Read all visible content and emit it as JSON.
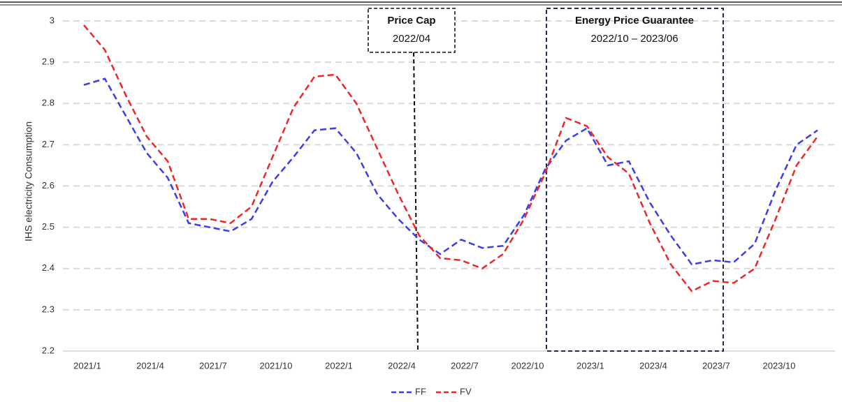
{
  "chart_data": {
    "type": "line",
    "ylabel": "IHS electricity Consumption",
    "categories": [
      "2021/1",
      null,
      null,
      "2021/4",
      null,
      null,
      "2021/7",
      null,
      null,
      "2021/10",
      null,
      null,
      "2022/1",
      null,
      null,
      "2022/4",
      null,
      null,
      "2022/7",
      null,
      null,
      "2022/10",
      null,
      null,
      "2023/1",
      null,
      null,
      "2023/4",
      null,
      null,
      "2023/7",
      null,
      null,
      "2023/10",
      null,
      null
    ],
    "series": [
      {
        "name": "FF",
        "color": "#3b3bf2",
        "values": [
          2.845,
          2.86,
          2.77,
          2.68,
          2.62,
          2.51,
          2.5,
          2.49,
          2.52,
          2.61,
          2.67,
          2.735,
          2.74,
          2.68,
          2.58,
          2.52,
          2.47,
          2.435,
          2.47,
          2.45,
          2.455,
          2.53,
          2.64,
          2.71,
          2.74,
          2.65,
          2.66,
          2.56,
          2.48,
          2.41,
          2.42,
          2.415,
          2.46,
          2.59,
          2.7,
          2.735
        ]
      },
      {
        "name": "FV",
        "color": "#f02626",
        "values": [
          2.99,
          2.93,
          2.82,
          2.72,
          2.66,
          2.52,
          2.52,
          2.51,
          2.55,
          2.67,
          2.79,
          2.865,
          2.87,
          2.8,
          2.69,
          2.58,
          2.48,
          2.425,
          2.42,
          2.4,
          2.435,
          2.52,
          2.63,
          2.765,
          2.745,
          2.67,
          2.63,
          2.51,
          2.41,
          2.345,
          2.37,
          2.365,
          2.4,
          2.52,
          2.65,
          2.72
        ]
      }
    ],
    "ylim": [
      2.2,
      3
    ],
    "yticks": [
      2.2,
      2.3,
      2.4,
      2.5,
      2.6,
      2.7,
      2.8,
      2.9,
      3
    ],
    "grid": true,
    "legend": "bottom",
    "annotations": [
      {
        "title": "Price Cap",
        "text": "2022/04"
      },
      {
        "title": "Energy Price Guarantee",
        "text": "2022/10 – 2023/06"
      }
    ]
  }
}
